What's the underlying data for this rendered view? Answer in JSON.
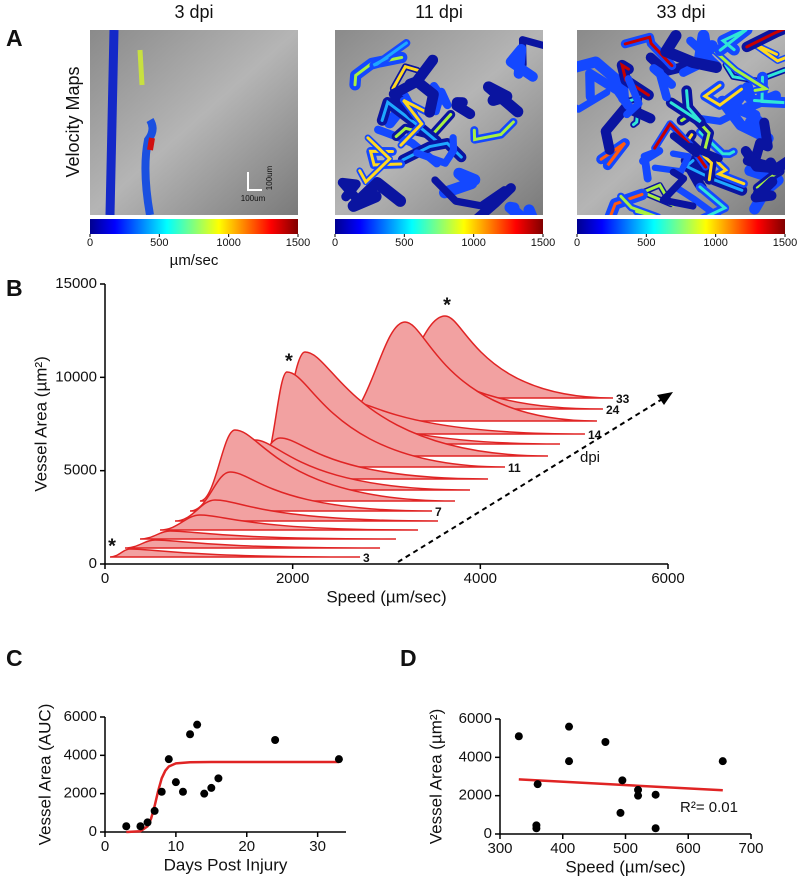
{
  "chart_data": [
    {
      "type": "velocity-maps",
      "panel_label": "A",
      "ylabel": "Velocity Maps",
      "titles": [
        "3 dpi",
        "11 dpi",
        "33 dpi"
      ],
      "clim": [
        0,
        1500
      ],
      "cticks": [
        0,
        500,
        1000,
        1500
      ],
      "colorbar_label": "µm/sec",
      "scale_bar_labels": [
        "100um",
        "100um"
      ]
    },
    {
      "type": "ridgeline",
      "panel_label": "B",
      "xlabel": "Speed (µm/sec)",
      "ylabel": "Vessel Area (µm²)",
      "xlim": [
        0,
        6000
      ],
      "ylim": [
        0,
        15000
      ],
      "xticks": [
        0,
        2000,
        4000,
        6000
      ],
      "yticks": [
        0,
        5000,
        10000,
        15000
      ],
      "color": "#e02424",
      "fill": "#f2a1a1",
      "annotations": [
        "*",
        "*",
        "*"
      ],
      "arrow_label": "dpi",
      "series": [
        {
          "name": "3",
          "x": [
            53,
            266,
            2718
          ],
          "values": [
            375,
            804,
            375
          ]
        },
        {
          "name": null,
          "x": [
            213,
            533,
            2931
          ],
          "values": [
            857,
            1286,
            857
          ]
        },
        {
          "name": null,
          "x": [
            373,
            693,
            3101
          ],
          "values": [
            1339,
            1768,
            1339
          ]
        },
        {
          "name": null,
          "x": [
            586,
            1012,
            3336
          ],
          "values": [
            1821,
            2625,
            1821
          ]
        },
        {
          "name": null,
          "x": [
            746,
            1172,
            3549
          ],
          "values": [
            2304,
            3429,
            2304
          ]
        },
        {
          "name": "7",
          "x": [
            906,
            1332,
            3485
          ],
          "values": [
            2839,
            4929,
            2839
          ]
        },
        {
          "name": null,
          "x": [
            1012,
            1385,
            3730
          ],
          "values": [
            3375,
            7179,
            3375
          ]
        },
        {
          "name": null,
          "x": [
            1172,
            1598,
            3890
          ],
          "values": [
            3964,
            6643,
            3964
          ]
        },
        {
          "name": null,
          "x": [
            1439,
            1865,
            4082
          ],
          "values": [
            4554,
            6750,
            4554
          ]
        },
        {
          "name": "11",
          "x": [
            1673,
            1939,
            4263
          ],
          "values": [
            5196,
            10286,
            5196
          ]
        },
        {
          "name": null,
          "x": [
            1758,
            2131,
            4721
          ],
          "values": [
            5786,
            11357,
            5786
          ]
        },
        {
          "name": null,
          "x": [
            1972,
            2398,
            4849
          ],
          "values": [
            6429,
            8250,
            6429
          ]
        },
        {
          "name": "14",
          "x": [
            2078,
            2558,
            5115
          ],
          "values": [
            6964,
            8786,
            6964
          ]
        },
        {
          "name": null,
          "x": [
            2504,
            3197,
            5243
          ],
          "values": [
            7661,
            12964,
            7661
          ]
        },
        {
          "name": "24",
          "x": [
            2664,
            3304,
            5307
          ],
          "values": [
            8304,
            10929,
            8304
          ]
        },
        {
          "name": "33",
          "x": [
            2877,
            3624,
            5414
          ],
          "values": [
            8893,
            13286,
            8893
          ]
        }
      ]
    },
    {
      "type": "scatter",
      "panel_label": "C",
      "xlabel": "Days Post Injury",
      "ylabel": "Vessel Area (AUC)",
      "xlim": [
        0,
        34
      ],
      "ylim": [
        0,
        6000
      ],
      "xticks": [
        0,
        10,
        20,
        30
      ],
      "yticks": [
        0,
        2000,
        4000,
        6000
      ],
      "color": "#000000",
      "x": [
        3,
        5,
        6,
        7,
        8,
        9,
        10,
        11,
        12,
        13,
        14,
        15,
        16,
        24,
        33
      ],
      "values": [
        300,
        300,
        500,
        1100,
        2100,
        3800,
        2600,
        2100,
        5100,
        5600,
        2000,
        2300,
        2800,
        4800,
        3800
      ],
      "fit": {
        "color": "#e02424",
        "x": [
          3,
          5,
          6,
          6.5,
          7,
          7.5,
          8,
          8.5,
          9,
          10,
          12,
          15,
          33
        ],
        "values": [
          0,
          40,
          300,
          700,
          1350,
          2150,
          2800,
          3200,
          3420,
          3580,
          3640,
          3650,
          3650
        ]
      }
    },
    {
      "type": "scatter",
      "panel_label": "D",
      "xlabel": "Speed (µm/sec)",
      "ylabel": "Vessel Area (µm²)",
      "xlim": [
        300,
        700
      ],
      "ylim": [
        0,
        6000
      ],
      "xticks": [
        300,
        400,
        500,
        600,
        700
      ],
      "yticks": [
        0,
        2000,
        4000,
        6000
      ],
      "color": "#000000",
      "x": [
        330,
        360,
        358,
        358,
        410,
        410,
        468,
        495,
        492,
        520,
        520,
        548,
        548,
        655
      ],
      "values": [
        5100,
        2600,
        450,
        300,
        5600,
        3800,
        4800,
        2800,
        1100,
        2300,
        2000,
        2050,
        300,
        3800
      ],
      "fit": {
        "color": "#e02424",
        "x": [
          330,
          655
        ],
        "values": [
          2850,
          2280
        ]
      },
      "annotation": "R²= 0.01"
    }
  ]
}
